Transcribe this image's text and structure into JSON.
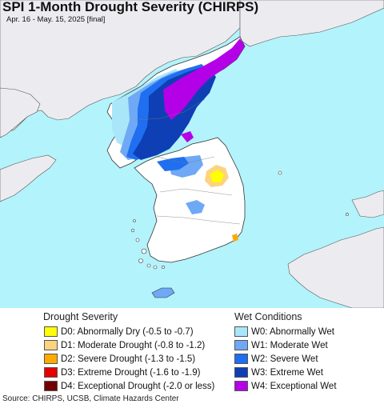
{
  "title": "SPI 1-Month Drought Severity (CHIRPS)",
  "subtitle": "Apr. 16 - May. 15, 2025 [final]",
  "colors": {
    "sea": "#b3f3fb",
    "land": "#ececf0",
    "korea_land": "#ffffff",
    "border": "#333333"
  },
  "legend_drought": {
    "heading": "Drought Severity",
    "items": [
      {
        "label": "D0: Abnormally Dry (-0.5 to -0.7)",
        "color": "#ffff00"
      },
      {
        "label": "D1: Moderate Drought (-0.8 to -1.2)",
        "color": "#fcd37f"
      },
      {
        "label": "D2: Severe Drought (-1.3 to -1.5)",
        "color": "#ffaa00"
      },
      {
        "label": "D3: Extreme Drought (-1.6 to -1.9)",
        "color": "#e60000"
      },
      {
        "label": "D4: Exceptional Drought (-2.0 or less)",
        "color": "#730000"
      }
    ]
  },
  "legend_wet": {
    "heading": "Wet Conditions",
    "items": [
      {
        "label": "W0: Abnormally Wet",
        "color": "#aae6fa"
      },
      {
        "label": "W1: Moderate Wet",
        "color": "#6fa9f5"
      },
      {
        "label": "W2: Severe Wet",
        "color": "#1f6ff0"
      },
      {
        "label": "W3: Extreme Wet",
        "color": "#0e3fb5"
      },
      {
        "label": "W4: Exceptional Wet",
        "color": "#b400e6"
      }
    ]
  },
  "source": "Source: CHIRPS, UCSB, Climate Hazards Center"
}
